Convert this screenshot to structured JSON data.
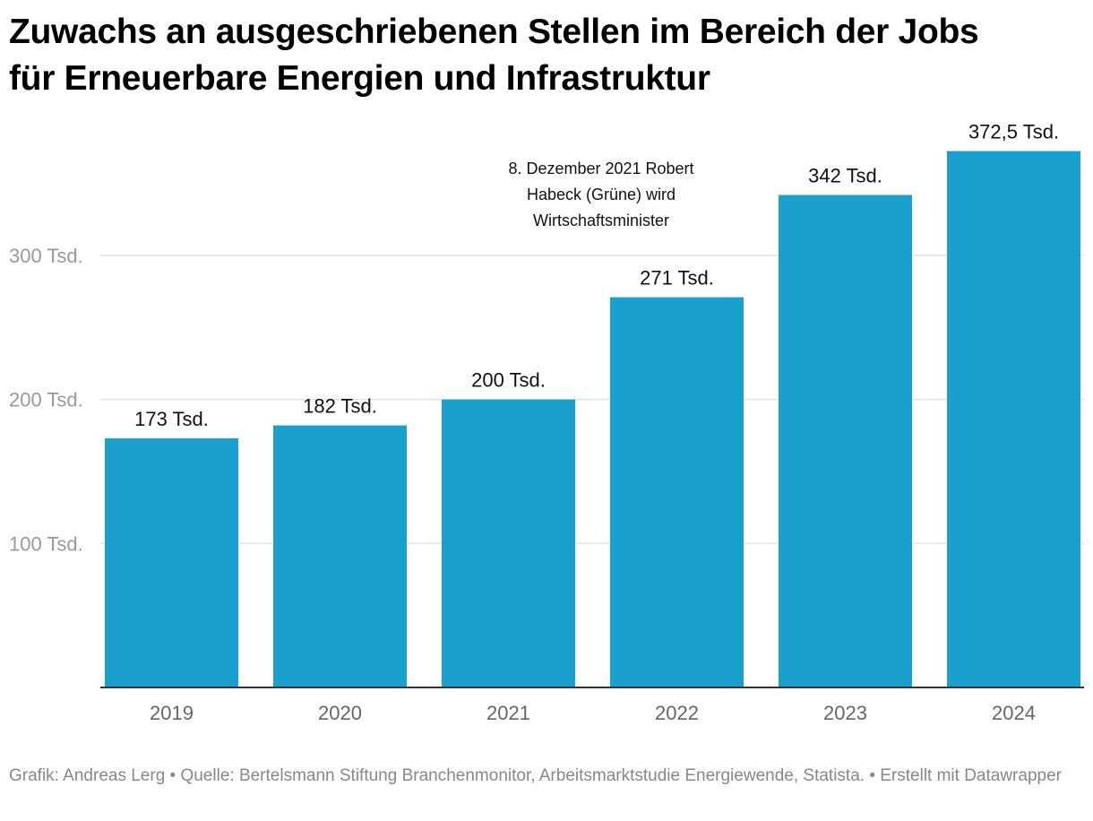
{
  "title_lines": [
    "Zuwachs an ausgeschriebenen Stellen im Bereich der Jobs",
    "für Erneuerbare Energien und Infrastruktur"
  ],
  "footer": "Grafik: Andreas Lerg • Quelle: Bertelsmann Stiftung Branchenmonitor, Arbeitsmarktstudie Energiewende, Statista. • Erstellt mit Datawrapper",
  "colors": {
    "bar": "#1aa0cc",
    "grid": "#e2e2e2",
    "axis": "#333333",
    "tick_label": "#999999",
    "category_label": "#666666",
    "value_label": "#111111"
  },
  "chart_data": {
    "type": "bar",
    "categories": [
      "2019",
      "2020",
      "2021",
      "2022",
      "2023",
      "2024"
    ],
    "values": [
      173,
      182,
      200,
      271,
      342,
      372.5
    ],
    "value_labels": [
      "173 Tsd.",
      "182 Tsd.",
      "200 Tsd.",
      "271 Tsd.",
      "342 Tsd.",
      "372,5 Tsd."
    ],
    "y_ticks": [
      100,
      200,
      300
    ],
    "y_tick_labels": [
      "100 Tsd.",
      "200 Tsd.",
      "300 Tsd."
    ],
    "ylim": [
      0,
      400
    ],
    "grid": true,
    "annotation": {
      "lines": [
        "8. Dezember 2021 Robert",
        "Habeck (Grüne) wird",
        "Wirtschaftsminister"
      ],
      "position": "above 2022"
    }
  }
}
